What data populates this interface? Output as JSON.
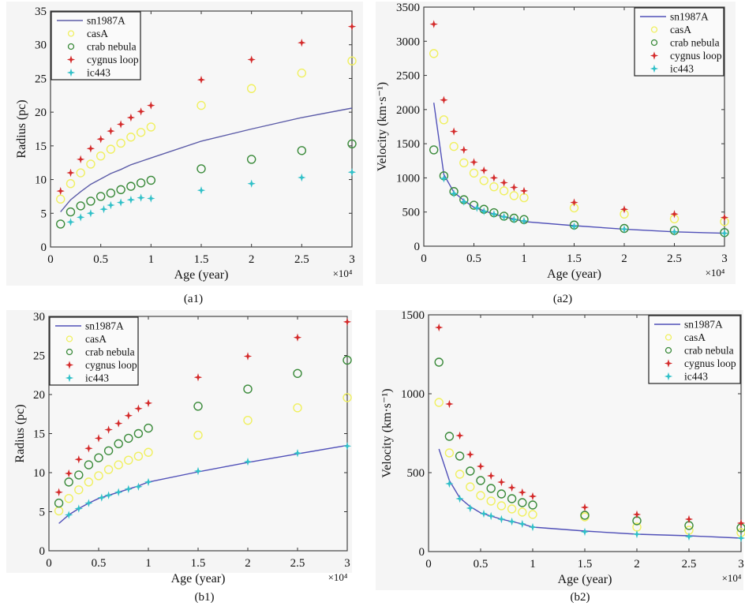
{
  "chart_data": [
    {
      "id": "a1",
      "type": "scatter",
      "caption": "(a1)",
      "xlabel": "Age (year)",
      "ylabel": "Radius (pc)",
      "x_multiplier_label": "×10⁴",
      "xlim": [
        0,
        3
      ],
      "ylim": [
        0,
        35
      ],
      "xticks": [
        0,
        0.5,
        1,
        1.5,
        2,
        2.5,
        3
      ],
      "xtick_labels": [
        "0",
        "0.5",
        "1",
        "1.5",
        "2",
        "2.5",
        "3"
      ],
      "yticks": [
        0,
        5,
        10,
        15,
        20,
        25,
        30,
        35
      ],
      "ytick_labels": [
        "0",
        "5",
        "10",
        "15",
        "20",
        "25",
        "30",
        "35"
      ],
      "legend_position": "top-left",
      "series": [
        {
          "name": "sn1987A",
          "style": "line",
          "color": "#5c5ca8",
          "x": [
            0.1,
            0.2,
            0.3,
            0.4,
            0.5,
            0.6,
            0.7,
            0.8,
            0.9,
            1.0,
            1.5,
            2.0,
            2.5,
            3.0
          ],
          "y": [
            5.2,
            7.0,
            8.2,
            9.3,
            10.1,
            10.9,
            11.5,
            12.2,
            12.7,
            13.2,
            15.7,
            17.5,
            19.2,
            20.6
          ]
        },
        {
          "name": "casA",
          "style": "circle",
          "color": "#f0f060",
          "x": [
            0.1,
            0.2,
            0.3,
            0.4,
            0.5,
            0.6,
            0.7,
            0.8,
            0.9,
            1.0,
            1.5,
            2.0,
            2.5,
            3.0
          ],
          "y": [
            7.1,
            9.4,
            11.0,
            12.3,
            13.5,
            14.5,
            15.4,
            16.3,
            17.0,
            17.8,
            21.0,
            23.5,
            25.8,
            27.6
          ]
        },
        {
          "name": "crab nebula",
          "style": "circle",
          "color": "#3a8a3a",
          "x": [
            0.1,
            0.2,
            0.3,
            0.4,
            0.5,
            0.6,
            0.7,
            0.8,
            0.9,
            1.0,
            1.5,
            2.0,
            2.5,
            3.0
          ],
          "y": [
            3.4,
            5.2,
            6.1,
            6.8,
            7.5,
            8.0,
            8.5,
            9.0,
            9.5,
            9.9,
            11.6,
            13.0,
            14.3,
            15.3
          ]
        },
        {
          "name": "cygnus loop",
          "style": "star",
          "color": "#d42a2a",
          "x": [
            0.1,
            0.2,
            0.3,
            0.4,
            0.5,
            0.6,
            0.7,
            0.8,
            0.9,
            1.0,
            1.5,
            2.0,
            2.5,
            3.0
          ],
          "y": [
            8.3,
            11.0,
            13.0,
            14.6,
            16.0,
            17.2,
            18.2,
            19.2,
            20.1,
            21.0,
            24.8,
            27.8,
            30.3,
            32.7
          ]
        },
        {
          "name": "ic443",
          "style": "star",
          "color": "#30c0c8",
          "x": [
            0.2,
            0.3,
            0.4,
            0.53,
            0.6,
            0.7,
            0.8,
            0.9,
            1.0,
            1.5,
            2.0,
            2.5,
            3.0
          ],
          "y": [
            3.7,
            4.4,
            5.0,
            5.6,
            6.2,
            6.6,
            7.0,
            7.3,
            7.2,
            8.4,
            9.4,
            10.3,
            11.1
          ]
        }
      ]
    },
    {
      "id": "a2",
      "type": "scatter",
      "caption": "(a2)",
      "xlabel": "Age (year)",
      "ylabel": "Velocity (km·s⁻¹)",
      "x_multiplier_label": "×10⁴",
      "xlim": [
        0,
        3
      ],
      "ylim": [
        0,
        3500
      ],
      "xticks": [
        0,
        0.5,
        1,
        1.5,
        2,
        2.5,
        3
      ],
      "xtick_labels": [
        "0",
        "0.5",
        "1",
        "1.5",
        "2",
        "2.5",
        "3"
      ],
      "yticks": [
        0,
        500,
        1000,
        1500,
        2000,
        2500,
        3000,
        3500
      ],
      "ytick_labels": [
        "0",
        "500",
        "1000",
        "1500",
        "2000",
        "2500",
        "3000",
        "3500"
      ],
      "legend_position": "top-right",
      "series": [
        {
          "name": "sn1987A",
          "style": "line",
          "color": "#5050b8",
          "x": [
            0.1,
            0.2,
            0.3,
            0.4,
            0.5,
            0.6,
            0.7,
            0.8,
            0.9,
            1.0,
            1.5,
            2.0,
            2.5,
            3.0
          ],
          "y": [
            2100,
            1050,
            790,
            670,
            570,
            520,
            470,
            430,
            400,
            360,
            300,
            250,
            210,
            190
          ]
        },
        {
          "name": "casA",
          "style": "circle",
          "color": "#f0f060",
          "x": [
            0.1,
            0.2,
            0.3,
            0.4,
            0.5,
            0.6,
            0.7,
            0.8,
            0.9,
            1.0,
            1.5,
            2.0,
            2.5,
            3.0
          ],
          "y": [
            2820,
            1850,
            1460,
            1220,
            1070,
            960,
            870,
            810,
            740,
            710,
            560,
            470,
            400,
            360
          ]
        },
        {
          "name": "crab nebula",
          "style": "circle",
          "color": "#3a8a3a",
          "x": [
            0.1,
            0.2,
            0.3,
            0.4,
            0.5,
            0.6,
            0.7,
            0.8,
            0.9,
            1.0,
            1.5,
            2.0,
            2.5,
            3.0
          ],
          "y": [
            1410,
            1030,
            800,
            680,
            600,
            540,
            490,
            440,
            410,
            390,
            310,
            260,
            230,
            200
          ]
        },
        {
          "name": "cygnus loop",
          "style": "star",
          "color": "#d42a2a",
          "x": [
            0.1,
            0.2,
            0.3,
            0.4,
            0.5,
            0.6,
            0.7,
            0.8,
            0.9,
            1.0,
            1.5,
            2.0,
            2.5,
            3.0
          ],
          "y": [
            3250,
            2140,
            1680,
            1410,
            1230,
            1110,
            1000,
            930,
            860,
            810,
            640,
            540,
            470,
            420
          ]
        },
        {
          "name": "ic443",
          "style": "star",
          "color": "#30c0c8",
          "x": [
            0.2,
            0.3,
            0.4,
            0.53,
            0.6,
            0.7,
            0.8,
            0.9,
            1.0,
            1.5,
            2.0,
            2.5,
            3.0
          ],
          "y": [
            990,
            770,
            650,
            560,
            510,
            470,
            430,
            390,
            370,
            290,
            250,
            210,
            190
          ]
        }
      ]
    },
    {
      "id": "b1",
      "type": "scatter",
      "caption": "(b1)",
      "xlabel": "Age (year)",
      "ylabel": "Radius (pc)",
      "x_multiplier_label": "×10⁴",
      "xlim": [
        0,
        3
      ],
      "ylim": [
        0,
        30
      ],
      "xticks": [
        0,
        0.5,
        1,
        1.5,
        2,
        2.5,
        3
      ],
      "xtick_labels": [
        "0",
        "0.5",
        "1",
        "1.5",
        "2",
        "2.5",
        "3"
      ],
      "yticks": [
        0,
        5,
        10,
        15,
        20,
        25,
        30
      ],
      "ytick_labels": [
        "0",
        "5",
        "10",
        "15",
        "20",
        "25",
        "30"
      ],
      "legend_position": "top-left",
      "series": [
        {
          "name": "sn1987A",
          "style": "line",
          "color": "#5050b8",
          "x": [
            0.1,
            0.2,
            0.3,
            0.4,
            0.5,
            0.6,
            0.7,
            0.8,
            0.9,
            1.0,
            1.5,
            2.0,
            2.5,
            3.0
          ],
          "y": [
            3.5,
            4.6,
            5.4,
            6.1,
            6.7,
            7.1,
            7.5,
            7.9,
            8.3,
            8.8,
            10.1,
            11.3,
            12.4,
            13.5
          ]
        },
        {
          "name": "casA",
          "style": "circle",
          "color": "#f0f060",
          "x": [
            0.1,
            0.2,
            0.3,
            0.4,
            0.5,
            0.6,
            0.7,
            0.8,
            0.9,
            1.0,
            1.5,
            2.0,
            2.5,
            3.0
          ],
          "y": [
            5.1,
            6.7,
            7.8,
            8.8,
            9.6,
            10.4,
            11.0,
            11.6,
            12.1,
            12.6,
            14.8,
            16.7,
            18.3,
            19.6
          ]
        },
        {
          "name": "crab nebula",
          "style": "circle",
          "color": "#3a8a3a",
          "x": [
            0.1,
            0.2,
            0.3,
            0.4,
            0.5,
            0.6,
            0.7,
            0.8,
            0.9,
            1.0,
            1.5,
            2.0,
            2.5,
            3.0
          ],
          "y": [
            6.1,
            8.8,
            9.7,
            11.0,
            11.9,
            12.8,
            13.7,
            14.4,
            15.0,
            15.7,
            18.5,
            20.7,
            22.7,
            24.4
          ]
        },
        {
          "name": "cygnus loop",
          "style": "star",
          "color": "#d42a2a",
          "x": [
            0.1,
            0.2,
            0.3,
            0.4,
            0.5,
            0.6,
            0.7,
            0.8,
            0.9,
            1.0,
            1.5,
            2.0,
            2.5,
            3.0
          ],
          "y": [
            7.5,
            9.9,
            11.7,
            13.1,
            14.4,
            15.5,
            16.3,
            17.3,
            18.2,
            18.9,
            22.2,
            24.9,
            27.3,
            29.3
          ]
        },
        {
          "name": "ic443",
          "style": "star",
          "color": "#30c0c8",
          "x": [
            0.2,
            0.3,
            0.4,
            0.53,
            0.6,
            0.7,
            0.8,
            0.9,
            1.0,
            1.5,
            2.0,
            2.5,
            3.0
          ],
          "y": [
            4.6,
            5.4,
            6.1,
            6.8,
            7.1,
            7.5,
            7.9,
            8.2,
            8.8,
            10.2,
            11.4,
            12.5,
            13.4
          ]
        }
      ]
    },
    {
      "id": "b2",
      "type": "scatter",
      "caption": "(b2)",
      "xlabel": "Age (year)",
      "ylabel": "Velocity (km·s⁻¹)",
      "x_multiplier_label": "×10⁴",
      "xlim": [
        0,
        3
      ],
      "ylim": [
        0,
        1500
      ],
      "xticks": [
        0,
        0.5,
        1,
        1.5,
        2,
        2.5,
        3
      ],
      "xtick_labels": [
        "0",
        "0.5",
        "1",
        "1.5",
        "2",
        "2.5",
        "3"
      ],
      "yticks": [
        0,
        500,
        1000,
        1500
      ],
      "ytick_labels": [
        "0",
        "500",
        "1000",
        "1500"
      ],
      "legend_position": "top-right",
      "series": [
        {
          "name": "sn1987A",
          "style": "line",
          "color": "#5050b8",
          "x": [
            0.1,
            0.2,
            0.3,
            0.4,
            0.5,
            0.6,
            0.7,
            0.8,
            0.9,
            1.0,
            1.5,
            2.0,
            2.5,
            3.0
          ],
          "y": [
            650,
            450,
            340,
            285,
            245,
            225,
            205,
            190,
            175,
            155,
            130,
            110,
            100,
            85
          ]
        },
        {
          "name": "casA",
          "style": "circle",
          "color": "#f0f060",
          "x": [
            0.1,
            0.2,
            0.3,
            0.4,
            0.5,
            0.6,
            0.7,
            0.8,
            0.9,
            1.0,
            1.5,
            2.0,
            2.5,
            3.0
          ],
          "y": [
            945,
            625,
            490,
            410,
            355,
            320,
            290,
            270,
            250,
            235,
            220,
            155,
            135,
            120
          ]
        },
        {
          "name": "crab nebula",
          "style": "circle",
          "color": "#3a8a3a",
          "x": [
            0.1,
            0.2,
            0.3,
            0.4,
            0.5,
            0.6,
            0.7,
            0.8,
            0.9,
            1.0,
            1.5,
            2.0,
            2.5,
            3.0
          ],
          "y": [
            1200,
            730,
            605,
            510,
            450,
            400,
            365,
            335,
            310,
            295,
            230,
            195,
            165,
            150
          ]
        },
        {
          "name": "cygnus loop",
          "style": "star",
          "color": "#d42a2a",
          "x": [
            0.1,
            0.2,
            0.3,
            0.4,
            0.5,
            0.6,
            0.7,
            0.8,
            0.9,
            1.0,
            1.5,
            2.0,
            2.5,
            3.0
          ],
          "y": [
            1420,
            935,
            735,
            615,
            540,
            480,
            440,
            405,
            375,
            350,
            280,
            235,
            205,
            180
          ]
        },
        {
          "name": "ic443",
          "style": "star",
          "color": "#30c0c8",
          "x": [
            0.2,
            0.3,
            0.4,
            0.53,
            0.6,
            0.7,
            0.8,
            0.9,
            1.0,
            1.5,
            2.0,
            2.5,
            3.0
          ],
          "y": [
            430,
            335,
            275,
            240,
            225,
            205,
            190,
            175,
            155,
            125,
            110,
            95,
            85
          ]
        }
      ]
    }
  ]
}
